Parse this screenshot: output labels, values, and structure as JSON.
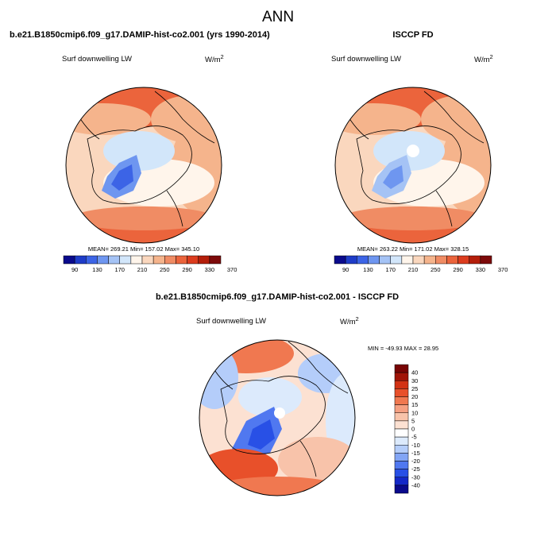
{
  "title": "ANN",
  "panels": [
    {
      "title": "b.e21.B1850cmip6.f09_g17.DAMIP-hist-co2.001 (yrs 1990-2014)",
      "variable": "Surf downwelling LW",
      "units": "W/m",
      "units_sup": "2",
      "stats": "MEAN= 269.21  Min= 157.02  Max= 345.10",
      "colorbar_labels": [
        "90",
        "130",
        "170",
        "210",
        "250",
        "290",
        "330",
        "370"
      ]
    },
    {
      "title": "ISCCP FD",
      "variable": "Surf downwelling LW",
      "units": "W/m",
      "units_sup": "2",
      "stats": "MEAN= 263.22  Min= 171.02  Max= 328.15",
      "colorbar_labels": [
        "90",
        "130",
        "170",
        "210",
        "250",
        "290",
        "330",
        "370"
      ]
    },
    {
      "title": "b.e21.B1850cmip6.f09_g17.DAMIP-hist-co2.001 - ISCCP FD",
      "variable": "Surf downwelling LW",
      "units": "W/m",
      "units_sup": "2",
      "stats": "MIN = -49.93 MAX =  28.95",
      "colorbar_labels": [
        "40",
        "30",
        "25",
        "20",
        "15",
        "10",
        "5",
        "0",
        "-5",
        "-10",
        "-15",
        "-20",
        "-25",
        "-30",
        "-40"
      ]
    }
  ],
  "colors": {
    "abs_scale": [
      "#0a0a8c",
      "#1e3cc8",
      "#3c64e6",
      "#6e96f0",
      "#a5c3f5",
      "#d2e6fa",
      "#fff5eb",
      "#fad7be",
      "#f5b48c",
      "#f08c64",
      "#eb643c",
      "#dc3c1e",
      "#b41e0a",
      "#7d0a0a"
    ],
    "diff_scale": [
      "#0a0a8c",
      "#1428c8",
      "#2850e6",
      "#5078f0",
      "#82a5f5",
      "#b4cdfa",
      "#dceafc",
      "#ffffff",
      "#fce1d2",
      "#f8c3aa",
      "#f5a082",
      "#f07850",
      "#e8502a",
      "#d23214",
      "#a01408",
      "#780505"
    ]
  }
}
